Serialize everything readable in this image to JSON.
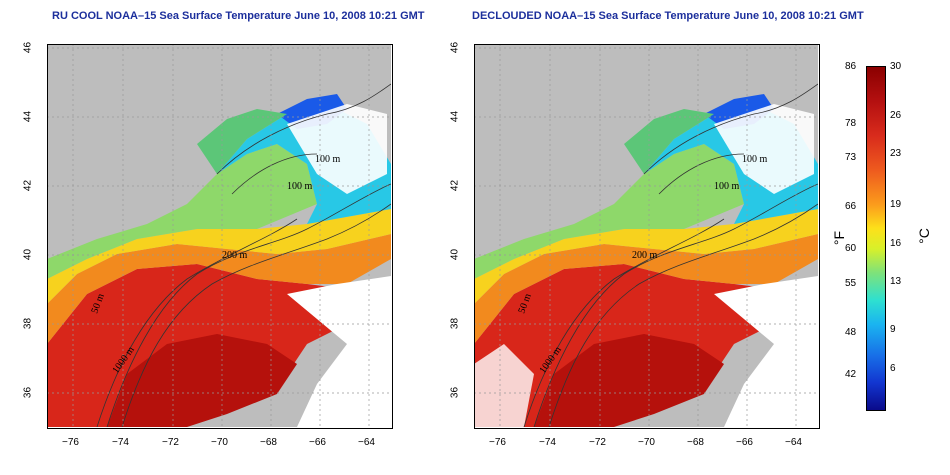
{
  "left_title": "RU COOL NOAA–15 Sea Surface Temperature June 10, 2008 10:21 GMT",
  "right_title": "DECLOUDED NOAA–15 Sea Surface Temperature June 10, 2008 10:21 GMT",
  "x_ticks": [
    "−76",
    "−74",
    "−72",
    "−70",
    "−68",
    "−66",
    "−64"
  ],
  "y_ticks": [
    "46",
    "44",
    "42",
    "40",
    "38",
    "36"
  ],
  "contours": {
    "label_100a": "100 m",
    "label_100b": "100 m",
    "label_50": "50 m",
    "label_200": "200 m",
    "label_1000": "1000 m"
  },
  "colorbar": {
    "fahrenheit_ticks": [
      "86",
      "78",
      "73",
      "66",
      "60",
      "55",
      "48",
      "42"
    ],
    "celsius_ticks": [
      "30",
      "26",
      "23",
      "19",
      "16",
      "13",
      "9",
      "6"
    ],
    "fahrenheit_unit": "°F",
    "celsius_unit": "°C"
  },
  "colors": {
    "land": "#bdbdbd",
    "warm": "#d8261a",
    "cold": "#1a5ae8",
    "title": "#1c2f9c"
  }
}
